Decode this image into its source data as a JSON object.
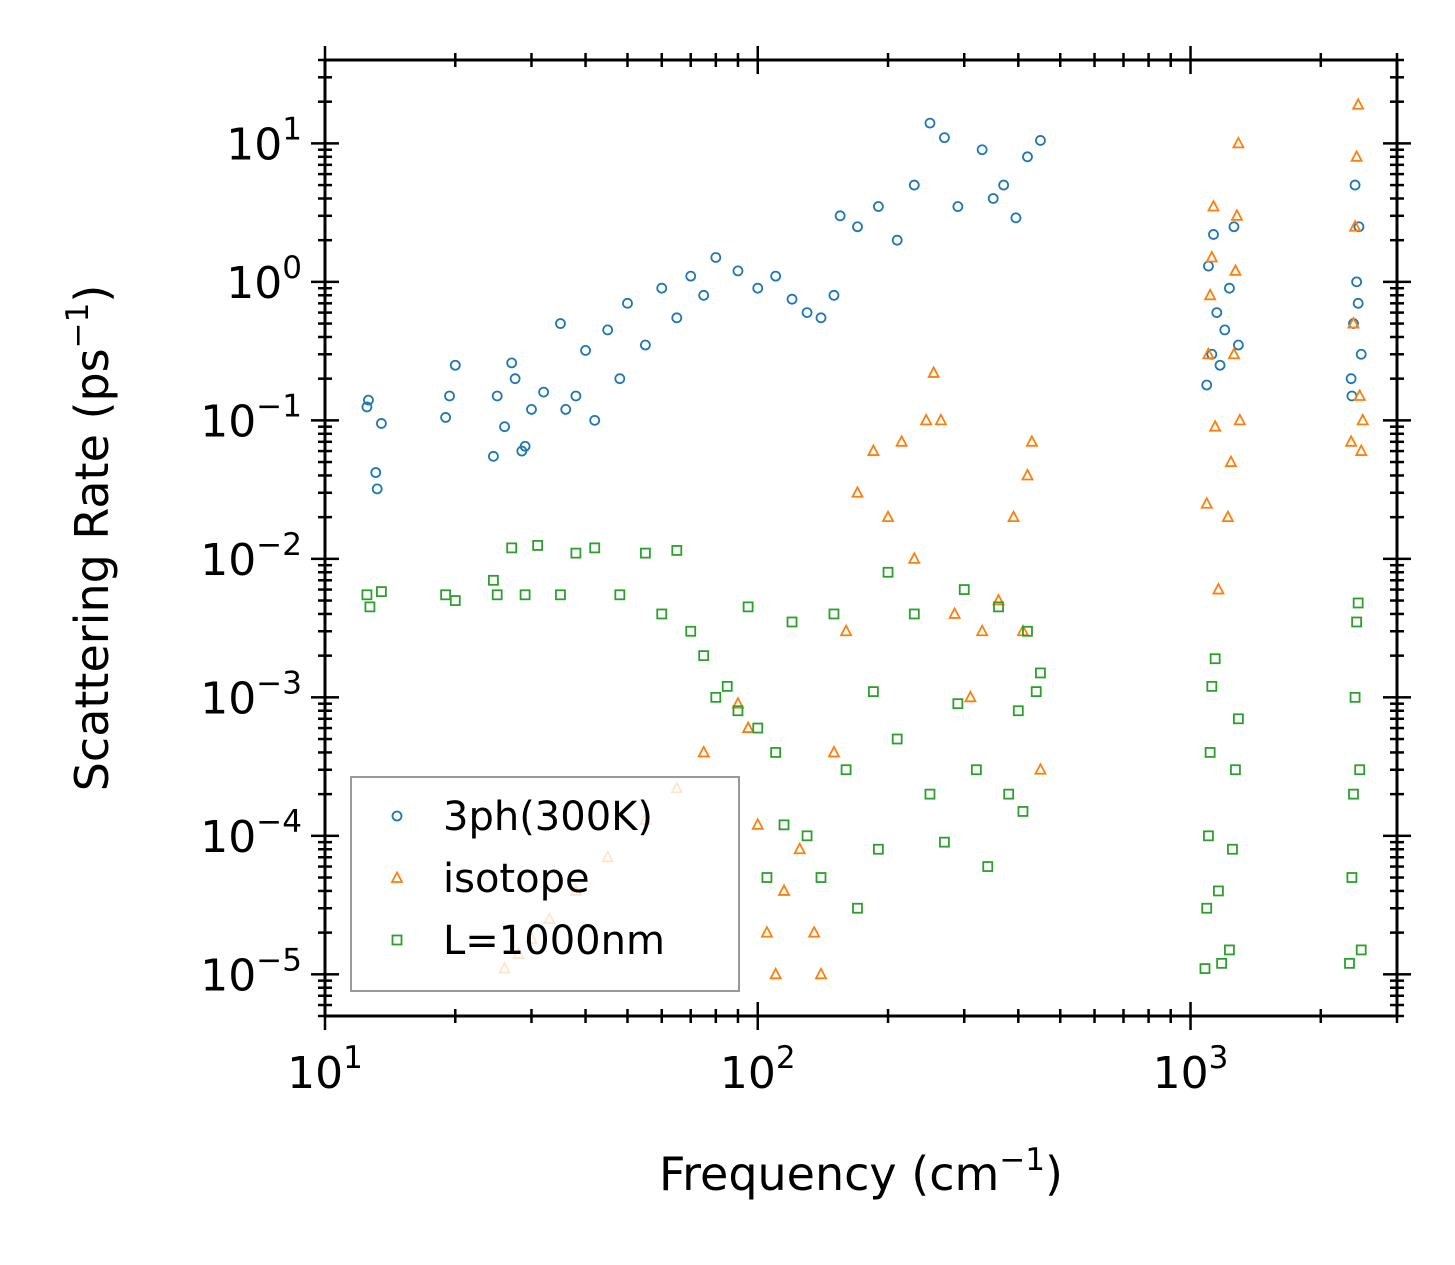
{
  "chart_data": {
    "type": "scatter",
    "xscale": "log",
    "yscale": "log",
    "xlim": [
      10,
      3000
    ],
    "ylim": [
      5e-06,
      40
    ],
    "xlabel": "Frequency (cm",
    "xlabel_exp": "−1",
    "xlabel_close": ")",
    "ylabel": "Scattering Rate (ps",
    "ylabel_exp": "−1",
    "ylabel_close": ")",
    "x_ticks": [
      {
        "value": 10,
        "base": "10",
        "exp": "1"
      },
      {
        "value": 100,
        "base": "10",
        "exp": "2"
      },
      {
        "value": 1000,
        "base": "10",
        "exp": "3"
      }
    ],
    "y_ticks": [
      {
        "value": 1e-05,
        "base": "10",
        "exp": "−5"
      },
      {
        "value": 0.0001,
        "base": "10",
        "exp": "−4"
      },
      {
        "value": 0.001,
        "base": "10",
        "exp": "−3"
      },
      {
        "value": 0.01,
        "base": "10",
        "exp": "−2"
      },
      {
        "value": 0.1,
        "base": "10",
        "exp": "−1"
      },
      {
        "value": 1,
        "base": "10",
        "exp": "0"
      },
      {
        "value": 10,
        "base": "10",
        "exp": "1"
      }
    ],
    "legend_position": "lower-left",
    "series": [
      {
        "name": "3ph(300K)",
        "marker": "circle",
        "color": "#1f77b4",
        "points": [
          [
            12.5,
            0.125
          ],
          [
            12.6,
            0.14
          ],
          [
            13.1,
            0.042
          ],
          [
            13.2,
            0.032
          ],
          [
            13.5,
            0.095
          ],
          [
            19,
            0.105
          ],
          [
            19.4,
            0.15
          ],
          [
            20,
            0.25
          ],
          [
            24.5,
            0.055
          ],
          [
            25,
            0.15
          ],
          [
            26,
            0.09
          ],
          [
            27,
            0.26
          ],
          [
            27.5,
            0.2
          ],
          [
            28.5,
            0.06
          ],
          [
            29,
            0.065
          ],
          [
            30,
            0.12
          ],
          [
            32,
            0.16
          ],
          [
            35,
            0.5
          ],
          [
            36,
            0.12
          ],
          [
            38,
            0.15
          ],
          [
            40,
            0.32
          ],
          [
            42,
            0.1
          ],
          [
            45,
            0.45
          ],
          [
            48,
            0.2
          ],
          [
            50,
            0.7
          ],
          [
            55,
            0.35
          ],
          [
            60,
            0.9
          ],
          [
            65,
            0.55
          ],
          [
            70,
            1.1
          ],
          [
            75,
            0.8
          ],
          [
            80,
            1.5
          ],
          [
            90,
            1.2
          ],
          [
            100,
            0.9
          ],
          [
            110,
            1.1
          ],
          [
            120,
            0.75
          ],
          [
            130,
            0.6
          ],
          [
            140,
            0.55
          ],
          [
            150,
            0.8
          ],
          [
            155,
            3.0
          ],
          [
            170,
            2.5
          ],
          [
            190,
            3.5
          ],
          [
            210,
            2.0
          ],
          [
            230,
            5.0
          ],
          [
            250,
            14.0
          ],
          [
            270,
            11.0
          ],
          [
            290,
            3.5
          ],
          [
            330,
            9.0
          ],
          [
            350,
            4.0
          ],
          [
            370,
            5.0
          ],
          [
            395,
            2.9
          ],
          [
            420,
            8.0
          ],
          [
            450,
            10.5
          ],
          [
            1090,
            0.18
          ],
          [
            1120,
            0.3
          ],
          [
            1150,
            0.6
          ],
          [
            1100,
            1.3
          ],
          [
            1130,
            2.2
          ],
          [
            1170,
            0.25
          ],
          [
            1200,
            0.45
          ],
          [
            1230,
            0.9
          ],
          [
            1260,
            2.5
          ],
          [
            1290,
            0.35
          ],
          [
            2350,
            0.2
          ],
          [
            2380,
            0.5
          ],
          [
            2420,
            1.0
          ],
          [
            2450,
            2.5
          ],
          [
            2480,
            0.3
          ],
          [
            2400,
            5.0
          ],
          [
            2360,
            0.15
          ],
          [
            2440,
            0.7
          ]
        ]
      },
      {
        "name": "isotope",
        "marker": "triangle",
        "color": "#ff7f0e",
        "points": [
          [
            26,
            1.1e-05
          ],
          [
            28,
            1.4e-05
          ],
          [
            30,
            1.8e-05
          ],
          [
            33,
            2.5e-05
          ],
          [
            38,
            4e-05
          ],
          [
            45,
            7e-05
          ],
          [
            55,
            0.00013
          ],
          [
            65,
            0.00022
          ],
          [
            75,
            0.0004
          ],
          [
            90,
            0.0009
          ],
          [
            95,
            0.0006
          ],
          [
            100,
            0.00012
          ],
          [
            105,
            2e-05
          ],
          [
            110,
            1e-05
          ],
          [
            115,
            4e-05
          ],
          [
            125,
            8e-05
          ],
          [
            135,
            2e-05
          ],
          [
            140,
            1e-05
          ],
          [
            150,
            0.0004
          ],
          [
            160,
            0.003
          ],
          [
            170,
            0.03
          ],
          [
            185,
            0.06
          ],
          [
            200,
            0.02
          ],
          [
            215,
            0.07
          ],
          [
            230,
            0.01
          ],
          [
            245,
            0.1
          ],
          [
            255,
            0.22
          ],
          [
            265,
            0.1
          ],
          [
            285,
            0.004
          ],
          [
            310,
            0.001
          ],
          [
            330,
            0.003
          ],
          [
            360,
            0.005
          ],
          [
            390,
            0.02
          ],
          [
            410,
            0.003
          ],
          [
            420,
            0.04
          ],
          [
            430,
            0.07
          ],
          [
            450,
            0.0003
          ],
          [
            1090,
            0.025
          ],
          [
            1100,
            0.3
          ],
          [
            1110,
            0.8
          ],
          [
            1120,
            1.5
          ],
          [
            1130,
            3.5
          ],
          [
            1140,
            0.09
          ],
          [
            1160,
            0.006
          ],
          [
            1220,
            0.02
          ],
          [
            1240,
            0.05
          ],
          [
            1260,
            0.3
          ],
          [
            1270,
            1.2
          ],
          [
            1280,
            3.0
          ],
          [
            1290,
            10.0
          ],
          [
            1300,
            0.1
          ],
          [
            2350,
            0.07
          ],
          [
            2380,
            0.5
          ],
          [
            2400,
            2.5
          ],
          [
            2420,
            8.0
          ],
          [
            2440,
            19.0
          ],
          [
            2460,
            0.15
          ],
          [
            2480,
            0.06
          ],
          [
            2500,
            0.1
          ]
        ]
      },
      {
        "name": "L=1000nm",
        "marker": "square",
        "color": "#2ca02c",
        "points": [
          [
            12.5,
            0.0055
          ],
          [
            12.7,
            0.0045
          ],
          [
            13.5,
            0.0058
          ],
          [
            19,
            0.0055
          ],
          [
            20,
            0.005
          ],
          [
            24.5,
            0.007
          ],
          [
            25,
            0.0055
          ],
          [
            27,
            0.012
          ],
          [
            29,
            0.0055
          ],
          [
            31,
            0.0125
          ],
          [
            35,
            0.0055
          ],
          [
            38,
            0.011
          ],
          [
            42,
            0.012
          ],
          [
            48,
            0.0055
          ],
          [
            55,
            0.011
          ],
          [
            60,
            0.004
          ],
          [
            65,
            0.0115
          ],
          [
            70,
            0.003
          ],
          [
            75,
            0.002
          ],
          [
            80,
            0.001
          ],
          [
            85,
            0.0012
          ],
          [
            90,
            0.0008
          ],
          [
            95,
            0.0045
          ],
          [
            100,
            0.0006
          ],
          [
            105,
            5e-05
          ],
          [
            110,
            0.0004
          ],
          [
            115,
            0.00012
          ],
          [
            120,
            0.0035
          ],
          [
            130,
            0.0001
          ],
          [
            140,
            5e-05
          ],
          [
            150,
            0.004
          ],
          [
            160,
            0.0003
          ],
          [
            170,
            3e-05
          ],
          [
            185,
            0.0011
          ],
          [
            190,
            8e-05
          ],
          [
            200,
            0.008
          ],
          [
            210,
            0.0005
          ],
          [
            230,
            0.004
          ],
          [
            250,
            0.0002
          ],
          [
            270,
            9e-05
          ],
          [
            290,
            0.0009
          ],
          [
            300,
            0.006
          ],
          [
            320,
            0.0003
          ],
          [
            340,
            6e-05
          ],
          [
            360,
            0.0045
          ],
          [
            380,
            0.0002
          ],
          [
            400,
            0.0008
          ],
          [
            410,
            0.00015
          ],
          [
            420,
            0.003
          ],
          [
            440,
            0.0011
          ],
          [
            450,
            0.0015
          ],
          [
            1080,
            1.1e-05
          ],
          [
            1090,
            3e-05
          ],
          [
            1100,
            0.0001
          ],
          [
            1110,
            0.0004
          ],
          [
            1120,
            0.0012
          ],
          [
            1140,
            0.0019
          ],
          [
            1160,
            4e-05
          ],
          [
            1180,
            1.2e-05
          ],
          [
            1230,
            1.5e-05
          ],
          [
            1250,
            8e-05
          ],
          [
            1270,
            0.0003
          ],
          [
            1290,
            0.0007
          ],
          [
            2330,
            1.2e-05
          ],
          [
            2360,
            5e-05
          ],
          [
            2380,
            0.0002
          ],
          [
            2400,
            0.001
          ],
          [
            2420,
            0.0035
          ],
          [
            2440,
            0.0048
          ],
          [
            2460,
            0.0003
          ],
          [
            2480,
            1.5e-05
          ]
        ]
      }
    ]
  }
}
